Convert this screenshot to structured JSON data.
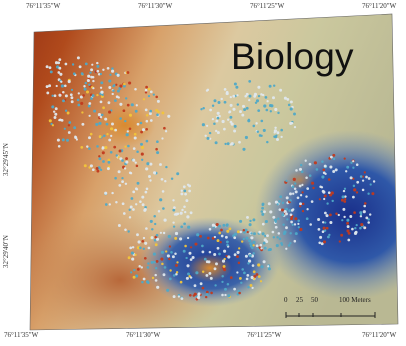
{
  "map": {
    "title": "Biology",
    "longitude_ticks_top": [
      "76°11'35\"W",
      "76°11'30\"W",
      "76°11'25\"W",
      "76°11'20\"W"
    ],
    "longitude_ticks_bottom": [
      "76°11'35\"W",
      "76°11'30\"W",
      "76°11'25\"W",
      "76°11'20\"W"
    ],
    "latitude_ticks_left": [
      "32°29'45\"N",
      "32°29'40\"N"
    ],
    "scale_bar": {
      "ticks": [
        "0",
        "25",
        "50",
        "100 Meters"
      ]
    },
    "colors": {
      "high_warm": "#8f2a12",
      "mid": "#d9c79a",
      "low_cool": "#1f3f9a",
      "points_light": "#dfe8ee",
      "points_cyan": "#4fa9c7",
      "points_yellow": "#f2c53a",
      "points_red": "#c13a1e"
    }
  }
}
